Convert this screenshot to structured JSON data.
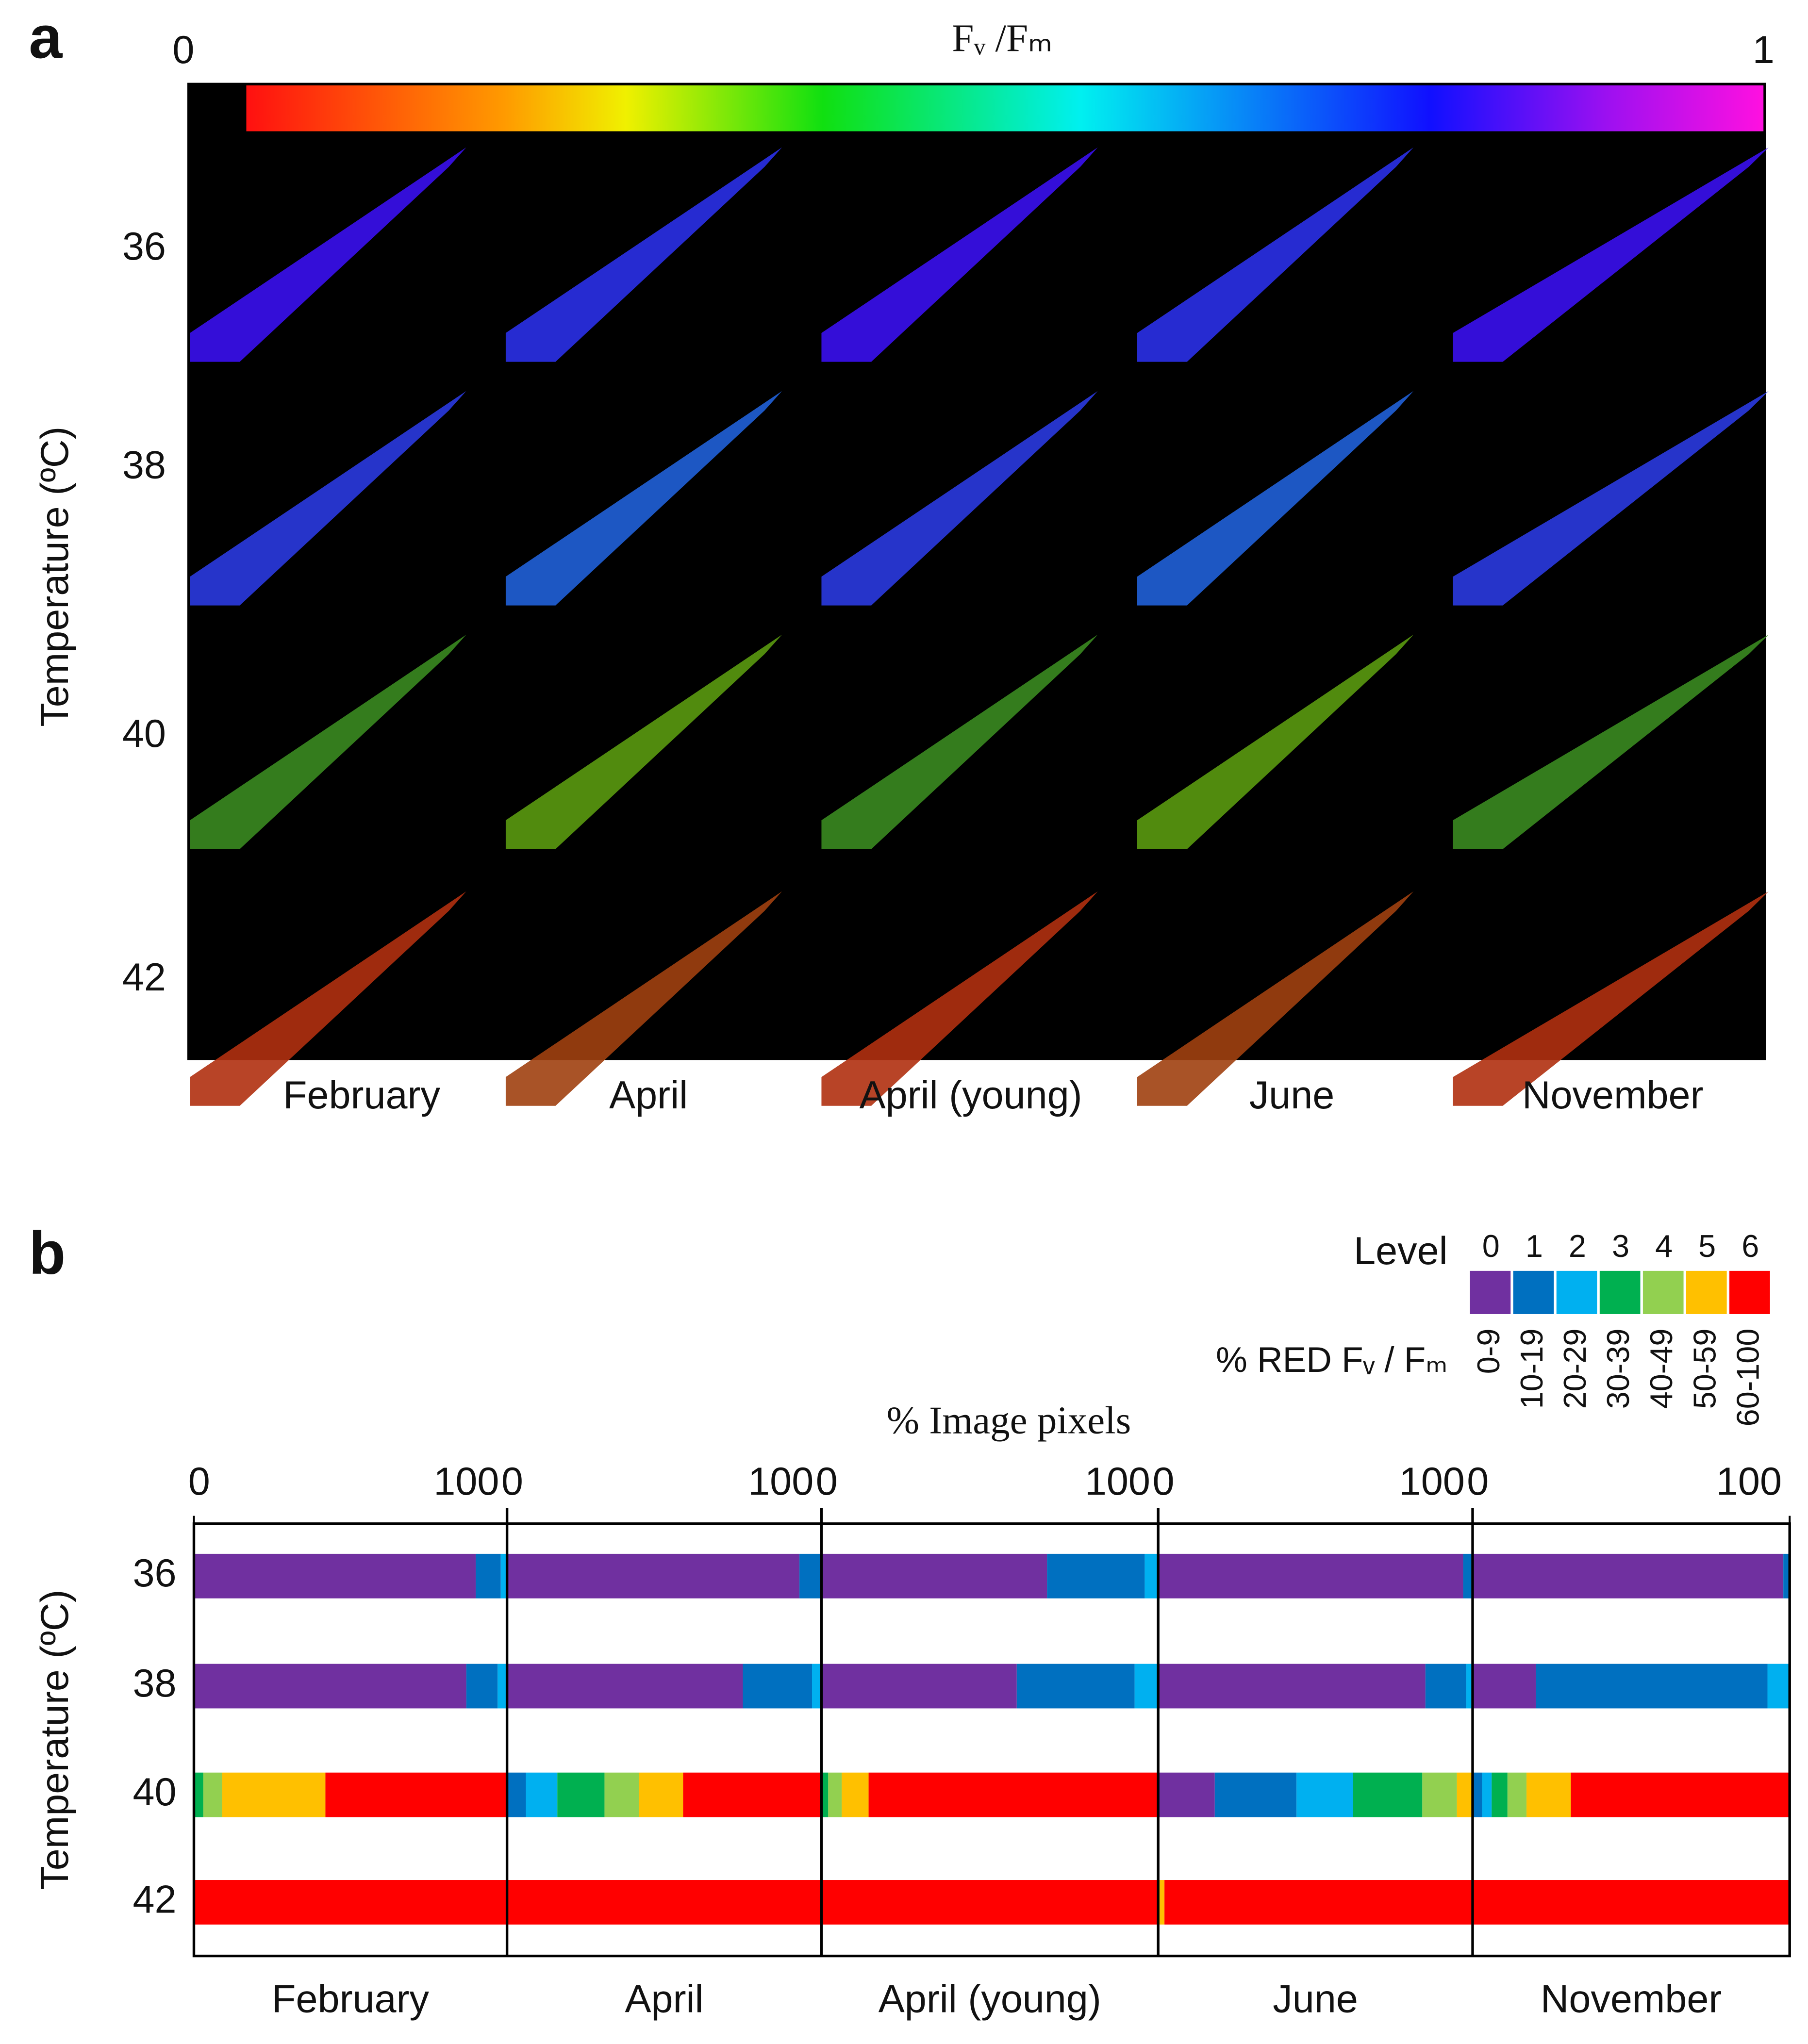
{
  "image_panel": {
    "panel_label": "a",
    "colorbar_title": "Fᵥ /Fₘ",
    "colorbar_ticks": [
      0,
      1
    ],
    "ylabel": "Temperature (ºC)",
    "row_labels": [
      "36",
      "38",
      "40",
      "42"
    ],
    "column_labels": [
      "February",
      "April",
      "April (young)",
      "June",
      "November"
    ]
  },
  "chart_data": {
    "type": "bar",
    "orientation": "horizontal",
    "stacked": true,
    "panel_label": "b",
    "xlabel": "% Image pixels",
    "ylabel": "Temperature (ºC)",
    "legend_title": "Level",
    "legend_subtitle": "% RED Fᵥ / Fₘ",
    "categories": [
      "36",
      "38",
      "40",
      "42"
    ],
    "xlim": [
      0,
      100
    ],
    "xticks": [
      0,
      100
    ],
    "series": [
      {
        "name": "0",
        "range": "0-9",
        "color": "#7030a0"
      },
      {
        "name": "1",
        "range": "10-19",
        "color": "#0070c0"
      },
      {
        "name": "2",
        "range": "20-29",
        "color": "#00b0f0"
      },
      {
        "name": "3",
        "range": "30-39",
        "color": "#00b050"
      },
      {
        "name": "4",
        "range": "40-49",
        "color": "#92d050"
      },
      {
        "name": "5",
        "range": "50-59",
        "color": "#ffc000"
      },
      {
        "name": "6",
        "range": "60-100",
        "color": "#ff0000"
      }
    ],
    "panels": [
      {
        "name": "February",
        "values": [
          [
            90,
            8,
            2,
            0,
            0,
            0,
            0
          ],
          [
            87,
            10,
            3,
            0,
            0,
            0,
            0
          ],
          [
            0,
            0,
            0,
            3,
            6,
            33,
            58
          ],
          [
            0,
            0,
            0,
            0,
            0,
            0,
            100
          ]
        ]
      },
      {
        "name": "April",
        "values": [
          [
            93,
            7,
            0,
            0,
            0,
            0,
            0
          ],
          [
            75,
            22,
            3,
            0,
            0,
            0,
            0
          ],
          [
            0,
            6,
            10,
            15,
            11,
            14,
            44
          ],
          [
            0,
            0,
            0,
            0,
            0,
            0,
            100
          ]
        ]
      },
      {
        "name": "April (young)",
        "values": [
          [
            67,
            29,
            4,
            0,
            0,
            0,
            0
          ],
          [
            58,
            35,
            7,
            0,
            0,
            0,
            0
          ],
          [
            0,
            0,
            0,
            2,
            4,
            8,
            86
          ],
          [
            0,
            0,
            0,
            0,
            0,
            0,
            100
          ]
        ]
      },
      {
        "name": "June",
        "values": [
          [
            97,
            3,
            0,
            0,
            0,
            0,
            0
          ],
          [
            85,
            13,
            2,
            0,
            0,
            0,
            0
          ],
          [
            18,
            26,
            18,
            22,
            11,
            5,
            0
          ],
          [
            0,
            0,
            0,
            0,
            0,
            2,
            98
          ]
        ]
      },
      {
        "name": "November",
        "values": [
          [
            98,
            2,
            0,
            0,
            0,
            0,
            0
          ],
          [
            20,
            73,
            7,
            0,
            0,
            0,
            0
          ],
          [
            0,
            3,
            3,
            5,
            6,
            14,
            69
          ],
          [
            0,
            0,
            0,
            0,
            0,
            0,
            100
          ]
        ]
      }
    ]
  }
}
